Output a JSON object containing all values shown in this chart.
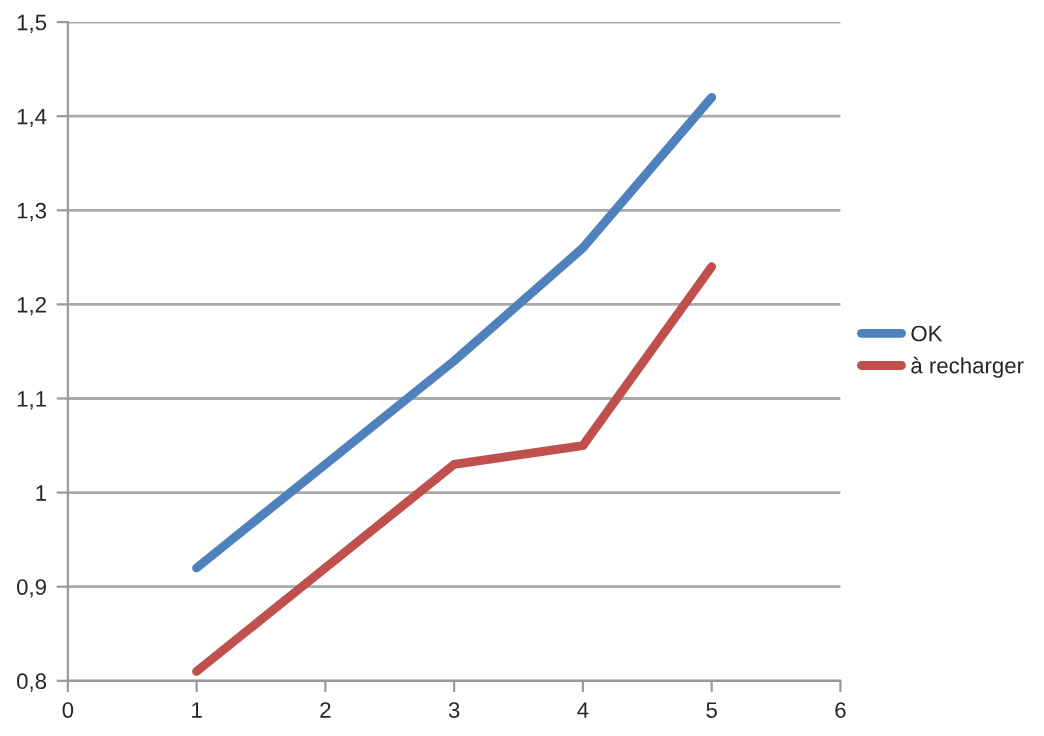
{
  "chart_data": {
    "type": "line",
    "x": [
      1,
      2,
      3,
      4,
      5
    ],
    "series": [
      {
        "name": "OK",
        "color": "#4f81bd",
        "values": [
          0.92,
          1.03,
          1.14,
          1.26,
          1.42
        ]
      },
      {
        "name": "à recharger",
        "color": "#c0504d",
        "values": [
          0.81,
          0.92,
          1.03,
          1.05,
          1.24
        ]
      }
    ],
    "xlim": [
      0,
      6
    ],
    "xticks": [
      0,
      1,
      2,
      3,
      4,
      5,
      6
    ],
    "ylim": [
      0.8,
      1.5
    ],
    "yticks": [
      {
        "value": 0.8,
        "label": "0,8"
      },
      {
        "value": 0.9,
        "label": "0,9"
      },
      {
        "value": 1,
        "label": "1"
      },
      {
        "value": 1.1,
        "label": "1,1"
      },
      {
        "value": 1.2,
        "label": "1,2"
      },
      {
        "value": 1.3,
        "label": "1,3"
      },
      {
        "value": 1.4,
        "label": "1,4"
      },
      {
        "value": 1.5,
        "label": "1,5"
      }
    ],
    "grid": "y",
    "legend": "right",
    "marker": "none",
    "line_style": "solid"
  }
}
